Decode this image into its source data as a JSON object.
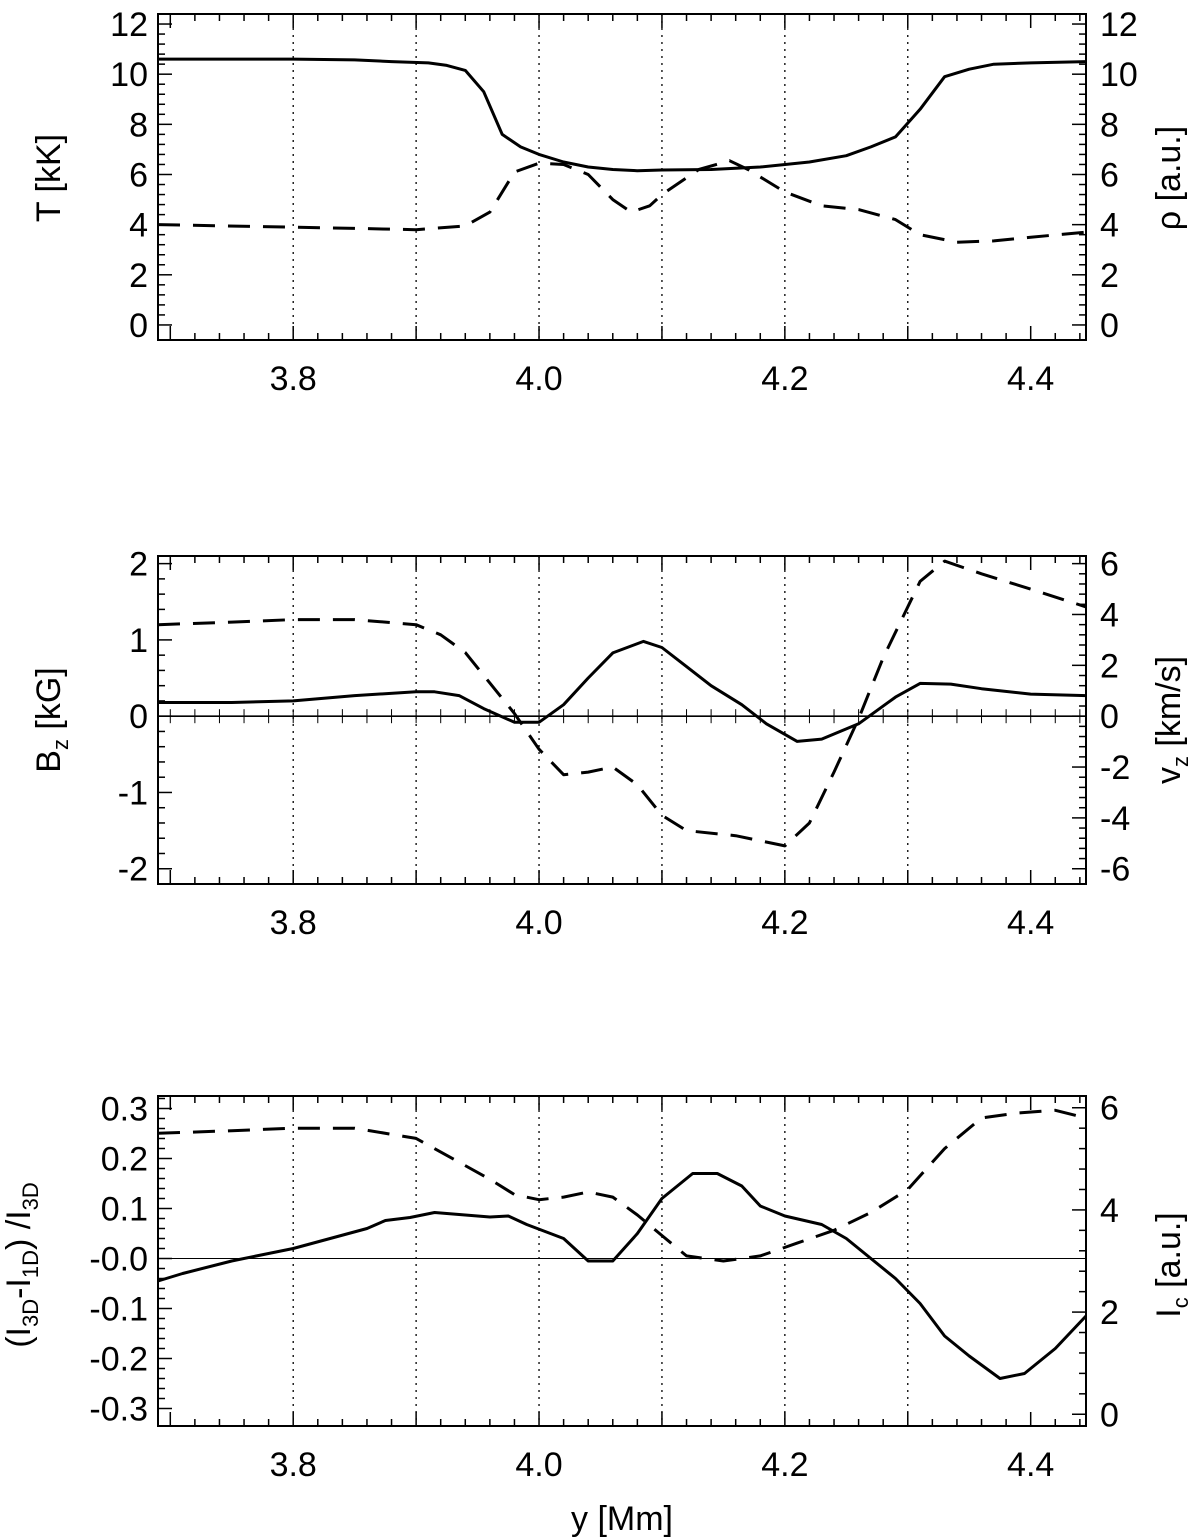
{
  "chart_data": [
    {
      "type": "line",
      "panel": "top",
      "xlabel": "",
      "ylabel_left": "T [kK]",
      "ylabel_right": "ρ [a.u.]",
      "xlim": [
        3.69,
        4.445
      ],
      "ylim_left": [
        -0.6,
        12.4
      ],
      "ylim_right": [
        -0.6,
        12.4
      ],
      "xticks": [
        "3.8",
        "4.0",
        "4.2",
        "4.4"
      ],
      "xtick_values": [
        3.8,
        4.0,
        4.2,
        4.4
      ],
      "yticks_left": [
        "0",
        "2",
        "4",
        "6",
        "8",
        "10",
        "12"
      ],
      "ytick_values_left": [
        0,
        2,
        4,
        6,
        8,
        10,
        12
      ],
      "yticks_right": [
        "0",
        "2",
        "4",
        "6",
        "8",
        "10",
        "12"
      ],
      "ytick_values_right": [
        0,
        2,
        4,
        6,
        8,
        10,
        12
      ],
      "vertical_gridlines": [
        3.8,
        3.9,
        4.0,
        4.1,
        4.2,
        4.3
      ],
      "zero_line": false,
      "series": [
        {
          "name": "T",
          "axis": "left",
          "style": "solid",
          "x": [
            3.69,
            3.75,
            3.8,
            3.85,
            3.88,
            3.91,
            3.925,
            3.94,
            3.955,
            3.97,
            3.985,
            4.0,
            4.02,
            4.04,
            4.06,
            4.08,
            4.1,
            4.14,
            4.18,
            4.22,
            4.25,
            4.27,
            4.29,
            4.31,
            4.33,
            4.35,
            4.37,
            4.4,
            4.445
          ],
          "values": [
            10.6,
            10.6,
            10.6,
            10.57,
            10.5,
            10.45,
            10.35,
            10.15,
            9.3,
            7.6,
            7.1,
            6.8,
            6.5,
            6.3,
            6.2,
            6.15,
            6.18,
            6.2,
            6.3,
            6.5,
            6.75,
            7.1,
            7.5,
            8.6,
            9.9,
            10.2,
            10.4,
            10.45,
            10.5
          ]
        },
        {
          "name": "ρ",
          "axis": "right",
          "style": "dashed",
          "x": [
            3.69,
            3.8,
            3.85,
            3.9,
            3.94,
            3.96,
            3.98,
            4.0,
            4.02,
            4.04,
            4.06,
            4.075,
            4.09,
            4.1,
            4.13,
            4.155,
            4.17,
            4.2,
            4.23,
            4.26,
            4.29,
            4.31,
            4.34,
            4.37,
            4.4,
            4.445
          ],
          "values": [
            4.0,
            3.9,
            3.85,
            3.8,
            3.95,
            4.5,
            6.1,
            6.45,
            6.4,
            6.0,
            5.0,
            4.5,
            4.75,
            5.2,
            6.2,
            6.55,
            6.2,
            5.3,
            4.75,
            4.6,
            4.2,
            3.6,
            3.3,
            3.35,
            3.5,
            3.7
          ]
        }
      ]
    },
    {
      "type": "line",
      "panel": "middle",
      "xlabel": "",
      "ylabel_left": "B_z [kG]",
      "ylabel_right": "v_z [km/s]",
      "xlim": [
        3.69,
        4.445
      ],
      "ylim_left": [
        -2.2,
        2.1
      ],
      "ylim_right": [
        -6.6,
        6.3
      ],
      "xticks": [
        "3.8",
        "4.0",
        "4.2",
        "4.4"
      ],
      "xtick_values": [
        3.8,
        4.0,
        4.2,
        4.4
      ],
      "yticks_left": [
        "-2",
        "-1",
        "0",
        "1",
        "2"
      ],
      "ytick_values_left": [
        -2,
        -1,
        0,
        1,
        2
      ],
      "yticks_right": [
        "-6",
        "-4",
        "-2",
        "0",
        "2",
        "4",
        "6"
      ],
      "ytick_values_right": [
        -6,
        -4,
        -2,
        0,
        2,
        4,
        6
      ],
      "vertical_gridlines": [
        3.8,
        3.9,
        4.0,
        4.1,
        4.2,
        4.3
      ],
      "zero_line": true,
      "series": [
        {
          "name": "B_z",
          "axis": "left",
          "style": "solid",
          "x": [
            3.69,
            3.75,
            3.8,
            3.85,
            3.9,
            3.915,
            3.935,
            3.955,
            3.98,
            4.0,
            4.02,
            4.04,
            4.06,
            4.085,
            4.1,
            4.12,
            4.14,
            4.165,
            4.185,
            4.21,
            4.23,
            4.26,
            4.29,
            4.31,
            4.335,
            4.36,
            4.4,
            4.445
          ],
          "values": [
            0.18,
            0.18,
            0.2,
            0.27,
            0.32,
            0.32,
            0.27,
            0.1,
            -0.08,
            -0.08,
            0.15,
            0.5,
            0.83,
            0.98,
            0.9,
            0.65,
            0.4,
            0.15,
            -0.1,
            -0.33,
            -0.3,
            -0.1,
            0.25,
            0.43,
            0.42,
            0.36,
            0.29,
            0.27
          ]
        },
        {
          "name": "v_z",
          "axis": "right",
          "style": "dashed",
          "x": [
            3.69,
            3.75,
            3.8,
            3.85,
            3.9,
            3.92,
            3.94,
            3.96,
            3.98,
            4.0,
            4.02,
            4.04,
            4.06,
            4.08,
            4.1,
            4.12,
            4.16,
            4.2,
            4.22,
            4.24,
            4.26,
            4.28,
            4.31,
            4.33,
            4.36,
            4.4,
            4.445
          ],
          "values": [
            3.6,
            3.7,
            3.8,
            3.8,
            3.6,
            3.2,
            2.5,
            1.3,
            0.1,
            -1.3,
            -2.3,
            -2.2,
            -2.0,
            -2.7,
            -3.9,
            -4.5,
            -4.7,
            -5.1,
            -4.2,
            -2.2,
            -0.1,
            2.3,
            5.3,
            6.1,
            5.6,
            5.0,
            4.3
          ]
        }
      ]
    },
    {
      "type": "line",
      "panel": "bottom",
      "xlabel": "y [Mm]",
      "ylabel_left": "(I_3D-I_1D) /I_3D",
      "ylabel_right": "I_c [a.u.]",
      "xlim": [
        3.69,
        4.445
      ],
      "ylim_left": [
        -0.335,
        0.325
      ],
      "ylim_right": [
        -0.23,
        6.23
      ],
      "xticks": [
        "3.8",
        "4.0",
        "4.2",
        "4.4"
      ],
      "xtick_values": [
        3.8,
        4.0,
        4.2,
        4.4
      ],
      "yticks_left": [
        "-0.3",
        "-0.2",
        "-0.1",
        "-0.0",
        "0.1",
        "0.2",
        "0.3"
      ],
      "ytick_values_left": [
        -0.3,
        -0.2,
        -0.1,
        0.0,
        0.1,
        0.2,
        0.3
      ],
      "yticks_right": [
        "0",
        "2",
        "4",
        "6"
      ],
      "ytick_values_right": [
        0,
        2,
        4,
        6
      ],
      "vertical_gridlines": [
        3.8,
        3.9,
        4.0,
        4.1,
        4.2,
        4.3
      ],
      "zero_line": true,
      "series": [
        {
          "name": "ΔI/I",
          "axis": "left",
          "style": "solid",
          "x": [
            3.69,
            3.71,
            3.75,
            3.8,
            3.83,
            3.86,
            3.875,
            3.895,
            3.915,
            3.935,
            3.96,
            3.975,
            3.99,
            4.02,
            4.04,
            4.06,
            4.08,
            4.1,
            4.125,
            4.145,
            4.165,
            4.18,
            4.2,
            4.23,
            4.25,
            4.27,
            4.29,
            4.31,
            4.33,
            4.35,
            4.375,
            4.395,
            4.42,
            4.445
          ],
          "values": [
            -0.045,
            -0.03,
            -0.005,
            0.02,
            0.04,
            0.06,
            0.076,
            0.082,
            0.092,
            0.088,
            0.083,
            0.085,
            0.068,
            0.04,
            -0.005,
            -0.005,
            0.05,
            0.12,
            0.17,
            0.17,
            0.145,
            0.105,
            0.085,
            0.068,
            0.04,
            0.0,
            -0.04,
            -0.09,
            -0.155,
            -0.195,
            -0.24,
            -0.23,
            -0.18,
            -0.115
          ]
        },
        {
          "name": "I_c",
          "axis": "right",
          "style": "dashed",
          "x": [
            3.69,
            3.75,
            3.8,
            3.85,
            3.9,
            3.93,
            3.96,
            3.98,
            4.0,
            4.02,
            4.04,
            4.06,
            4.08,
            4.1,
            4.12,
            4.15,
            4.18,
            4.21,
            4.24,
            4.27,
            4.3,
            4.33,
            4.36,
            4.39,
            4.42,
            4.445
          ],
          "values": [
            5.5,
            5.55,
            5.6,
            5.6,
            5.4,
            5.0,
            4.6,
            4.3,
            4.2,
            4.25,
            4.35,
            4.25,
            3.9,
            3.5,
            3.1,
            3.0,
            3.1,
            3.35,
            3.6,
            3.95,
            4.4,
            5.2,
            5.8,
            5.9,
            5.95,
            5.8
          ]
        }
      ]
    }
  ]
}
